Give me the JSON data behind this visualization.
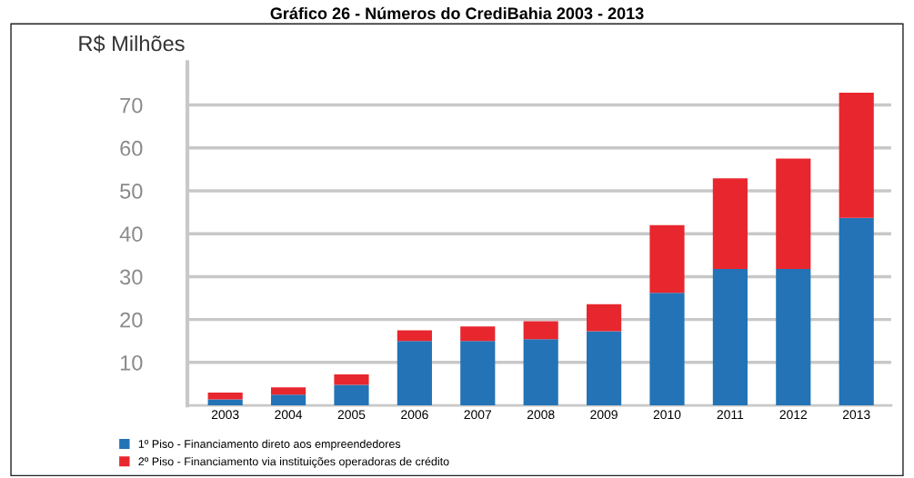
{
  "chart_data": {
    "type": "bar",
    "stacked": true,
    "title": "Gráfico 26 - Números do CrediBahia 2003 - 2013",
    "ylabel": "R$ Milhões",
    "categories": [
      "2003",
      "2004",
      "2005",
      "2006",
      "2007",
      "2008",
      "2009",
      "2010",
      "2011",
      "2012",
      "2013"
    ],
    "series": [
      {
        "name": "1º Piso - Financiamento direto aos empreendedores",
        "color": "#2373b6",
        "values": [
          1.4,
          2.5,
          4.8,
          15.0,
          15.0,
          15.4,
          17.3,
          26.2,
          31.8,
          31.8,
          43.7
        ]
      },
      {
        "name": "2º Piso - Financiamento via instituições operadoras de crédito",
        "color": "#e8262e",
        "values": [
          1.6,
          1.7,
          2.4,
          2.5,
          3.4,
          4.2,
          6.3,
          15.8,
          21.1,
          25.7,
          29.2
        ]
      }
    ],
    "ylim": [
      0,
      80
    ],
    "yticks": [
      10,
      20,
      30,
      40,
      50,
      60,
      70
    ],
    "grid": "y",
    "legend": "bottom left"
  }
}
